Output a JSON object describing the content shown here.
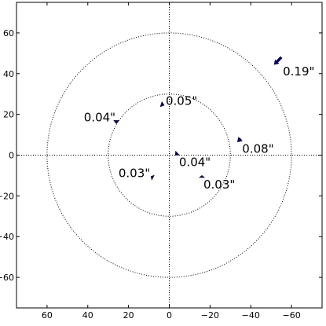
{
  "chart_data": {
    "type": "scatter",
    "title": "",
    "xlabel": "",
    "ylabel": "",
    "x_reversed": true,
    "xlim": [
      75,
      -75
    ],
    "ylim": [
      -75,
      75
    ],
    "x_ticks": [
      {
        "value": 60,
        "label": "60"
      },
      {
        "value": 40,
        "label": "40"
      },
      {
        "value": 20,
        "label": "20"
      },
      {
        "value": 0,
        "label": "0"
      },
      {
        "value": -20,
        "label": "−20"
      },
      {
        "value": -40,
        "label": "−40"
      },
      {
        "value": -60,
        "label": "−60"
      }
    ],
    "y_ticks": [
      {
        "value": 60,
        "label": "60"
      },
      {
        "value": 40,
        "label": "40"
      },
      {
        "value": 20,
        "label": "20"
      },
      {
        "value": 0,
        "label": "0"
      },
      {
        "value": -20,
        "label": "−20"
      },
      {
        "value": -40,
        "label": "−40"
      },
      {
        "value": -60,
        "label": "−60"
      }
    ],
    "reference_circles": [
      30,
      60
    ],
    "reference_axes": true,
    "grid": false,
    "arrow_color": "#00008b",
    "points": [
      {
        "x": -55,
        "y": 48,
        "dx": 3.5,
        "dy": -3.5,
        "label": "0.19\"",
        "label_pos": "below-right"
      },
      {
        "x": 4,
        "y": 25,
        "dx": -1.5,
        "dy": -0.5,
        "label": "0.05\"",
        "label_pos": "above-right"
      },
      {
        "x": 26,
        "y": 17,
        "dx": 0,
        "dy": -1.5,
        "label": "0.04\"",
        "label_pos": "above-left"
      },
      {
        "x": -35,
        "y": 8,
        "dx": 1.5,
        "dy": -1.5,
        "label": "0.08\"",
        "label_pos": "below-right"
      },
      {
        "x": -4,
        "y": 1,
        "dx": 1.0,
        "dy": -1.0,
        "label": "0.04\"",
        "label_pos": "below-right"
      },
      {
        "x": 8,
        "y": -11,
        "dx": 1.0,
        "dy": 0.5,
        "label": "0.03\"",
        "label_pos": "above-left"
      },
      {
        "x": -16,
        "y": -11,
        "dx": 0,
        "dy": 1.0,
        "label": "0.03\"",
        "label_pos": "below-right"
      }
    ]
  }
}
